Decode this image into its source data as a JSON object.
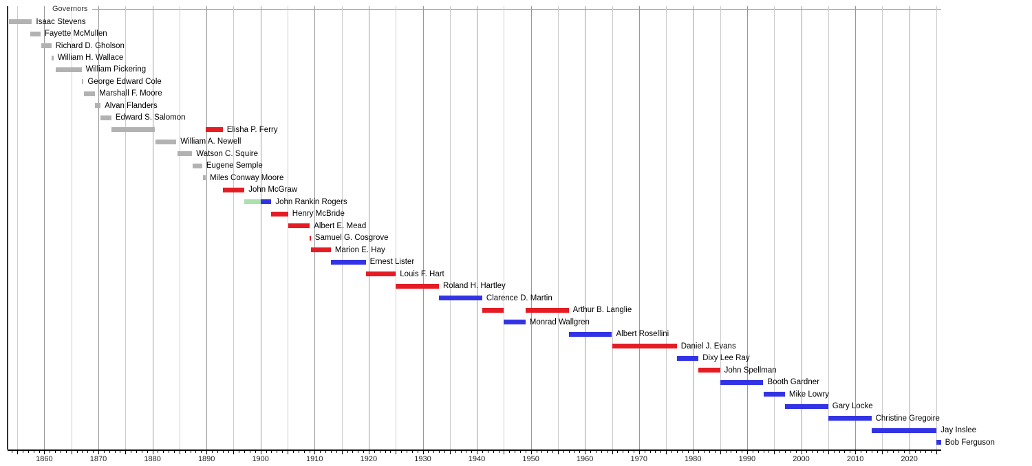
{
  "header": {
    "title": "Governors"
  },
  "chart_data": {
    "type": "timeline",
    "title": "Governors",
    "xlabel": "",
    "ylabel": "",
    "x_range": [
      1853.2,
      2025.9
    ],
    "x_tick_labels": [
      "1860",
      "1870",
      "1880",
      "1890",
      "1900",
      "1910",
      "1920",
      "1930",
      "1940",
      "1950",
      "1960",
      "1970",
      "1980",
      "1990",
      "2000",
      "2010",
      "2020"
    ],
    "minor_tick_interval_years": 1,
    "gridline_interval_years": 5,
    "grid": "on",
    "legend_position": "none",
    "party_colors": {
      "territorial": "#B2B2B2",
      "republican": "#E51C23",
      "democratic": "#3333E6",
      "populist": "#ACE1AF"
    },
    "governors": [
      {
        "name": "Isaac Stevens",
        "terms": [
          {
            "start": 1853.4,
            "end": 1857.7,
            "party": "territorial"
          }
        ]
      },
      {
        "name": "Fayette McMullen",
        "terms": [
          {
            "start": 1857.4,
            "end": 1859.3,
            "party": "territorial"
          }
        ]
      },
      {
        "name": "Richard D. Gholson",
        "terms": [
          {
            "start": 1859.4,
            "end": 1861.3,
            "party": "territorial"
          }
        ]
      },
      {
        "name": "William H. Wallace",
        "terms": [
          {
            "start": 1861.4,
            "end": 1861.7,
            "party": "territorial"
          }
        ]
      },
      {
        "name": "William Pickering",
        "terms": [
          {
            "start": 1862.1,
            "end": 1866.9,
            "party": "territorial"
          }
        ]
      },
      {
        "name": "George Edward Cole",
        "terms": [
          {
            "start": 1866.9,
            "end": 1867.25,
            "party": "territorial"
          }
        ]
      },
      {
        "name": "Marshall F. Moore",
        "terms": [
          {
            "start": 1867.3,
            "end": 1869.4,
            "party": "territorial"
          }
        ]
      },
      {
        "name": "Alvan Flanders",
        "terms": [
          {
            "start": 1869.4,
            "end": 1870.4,
            "party": "territorial"
          }
        ]
      },
      {
        "name": "Edward S. Salomon",
        "terms": [
          {
            "start": 1870.4,
            "end": 1872.4,
            "party": "territorial"
          }
        ]
      },
      {
        "name": "Elisha P. Ferry",
        "terms": [
          {
            "start": 1872.4,
            "end": 1880.5,
            "party": "territorial"
          },
          {
            "start": 1889.85,
            "end": 1893.0,
            "party": "republican"
          }
        ]
      },
      {
        "name": "William A. Newell",
        "terms": [
          {
            "start": 1880.6,
            "end": 1884.4,
            "party": "territorial"
          }
        ]
      },
      {
        "name": "Watson C. Squire",
        "terms": [
          {
            "start": 1884.65,
            "end": 1887.35,
            "party": "territorial"
          }
        ]
      },
      {
        "name": "Eugene Semple",
        "terms": [
          {
            "start": 1887.4,
            "end": 1889.2,
            "party": "territorial"
          }
        ]
      },
      {
        "name": "Miles Conway Moore",
        "terms": [
          {
            "start": 1889.3,
            "end": 1889.85,
            "party": "territorial"
          }
        ]
      },
      {
        "name": "John McGraw",
        "terms": [
          {
            "start": 1893.0,
            "end": 1897.0,
            "party": "republican"
          }
        ]
      },
      {
        "name": "John Rankin Rogers",
        "terms": [
          {
            "start": 1897.0,
            "end": 1900.0,
            "party": "populist"
          },
          {
            "start": 1900.0,
            "end": 1902.0,
            "party": "democratic"
          }
        ]
      },
      {
        "name": "Henry McBride",
        "terms": [
          {
            "start": 1902.0,
            "end": 1905.1,
            "party": "republican"
          }
        ]
      },
      {
        "name": "Albert E. Mead",
        "terms": [
          {
            "start": 1905.1,
            "end": 1909.1,
            "party": "republican"
          }
        ]
      },
      {
        "name": "Samuel G. Cosgrove",
        "terms": [
          {
            "start": 1909.1,
            "end": 1909.3,
            "party": "republican"
          }
        ]
      },
      {
        "name": "Marion E. Hay",
        "terms": [
          {
            "start": 1909.3,
            "end": 1913.0,
            "party": "republican"
          }
        ]
      },
      {
        "name": "Ernest Lister",
        "terms": [
          {
            "start": 1913.0,
            "end": 1919.45,
            "party": "democratic"
          }
        ]
      },
      {
        "name": "Louis F. Hart",
        "terms": [
          {
            "start": 1919.45,
            "end": 1925.0,
            "party": "republican"
          }
        ]
      },
      {
        "name": "Roland H. Hartley",
        "terms": [
          {
            "start": 1925.0,
            "end": 1933.0,
            "party": "republican"
          }
        ]
      },
      {
        "name": "Clarence D. Martin",
        "terms": [
          {
            "start": 1933.0,
            "end": 1941.0,
            "party": "democratic"
          }
        ]
      },
      {
        "name": "Arthur B. Langlie",
        "terms": [
          {
            "start": 1941.0,
            "end": 1945.0,
            "party": "republican"
          },
          {
            "start": 1949.0,
            "end": 1957.0,
            "party": "republican"
          }
        ]
      },
      {
        "name": "Monrad Wallgren",
        "terms": [
          {
            "start": 1945.0,
            "end": 1949.0,
            "party": "democratic"
          }
        ]
      },
      {
        "name": "Albert Rosellini",
        "terms": [
          {
            "start": 1957.0,
            "end": 1965.0,
            "party": "democratic"
          }
        ]
      },
      {
        "name": "Daniel J. Evans",
        "terms": [
          {
            "start": 1965.0,
            "end": 1977.0,
            "party": "republican"
          }
        ]
      },
      {
        "name": "Dixy Lee Ray",
        "terms": [
          {
            "start": 1977.0,
            "end": 1981.0,
            "party": "democratic"
          }
        ]
      },
      {
        "name": "John Spellman",
        "terms": [
          {
            "start": 1981.0,
            "end": 1985.0,
            "party": "republican"
          }
        ]
      },
      {
        "name": "Booth Gardner",
        "terms": [
          {
            "start": 1985.0,
            "end": 1993.0,
            "party": "democratic"
          }
        ]
      },
      {
        "name": "Mike Lowry",
        "terms": [
          {
            "start": 1993.0,
            "end": 1997.0,
            "party": "democratic"
          }
        ]
      },
      {
        "name": "Gary Locke",
        "terms": [
          {
            "start": 1997.0,
            "end": 2005.0,
            "party": "democratic"
          }
        ]
      },
      {
        "name": "Christine Gregoire",
        "terms": [
          {
            "start": 2005.0,
            "end": 2013.0,
            "party": "democratic"
          }
        ]
      },
      {
        "name": "Jay Inslee",
        "terms": [
          {
            "start": 2013.0,
            "end": 2025.05,
            "party": "democratic"
          }
        ]
      },
      {
        "name": "Bob Ferguson",
        "terms": [
          {
            "start": 2025.05,
            "end": 2025.85,
            "party": "democratic"
          }
        ]
      }
    ]
  }
}
